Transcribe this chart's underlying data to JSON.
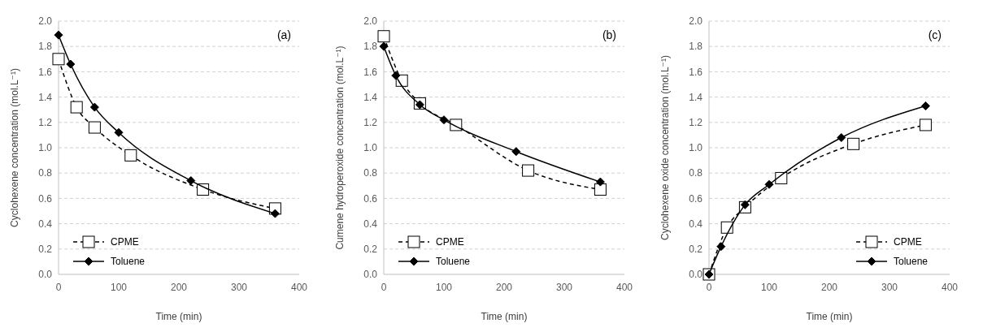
{
  "chart_data": [
    {
      "type": "line",
      "annotations": [
        "(a)"
      ],
      "xlabel": "Time (min)",
      "ylabel": "Cyclohexene concentration (mol.L⁻¹)",
      "xlim": [
        0,
        400
      ],
      "xticks": [
        0,
        100,
        200,
        300,
        400
      ],
      "ylim": [
        0,
        2
      ],
      "yticks": [
        {
          "value": 0,
          "label": "0.0"
        },
        {
          "value": 0.2,
          "label": "0.2"
        },
        {
          "value": 0.4,
          "label": "0.4"
        },
        {
          "value": 0.6,
          "label": "0.6"
        },
        {
          "value": 0.8,
          "label": "0.8"
        },
        {
          "value": 1,
          "label": "1.0"
        },
        {
          "value": 1.2,
          "label": "1.2"
        },
        {
          "value": 1.4,
          "label": "1.4"
        },
        {
          "value": 1.6,
          "label": "1.6"
        },
        {
          "value": 1.8,
          "label": "1.8"
        },
        {
          "value": 2,
          "label": "2.0"
        }
      ],
      "grid": "y",
      "legend": "bottom left",
      "series": [
        {
          "name": "CPME",
          "color": "#000000",
          "marker": "square",
          "line_style": "dashed",
          "x": [
            0,
            30,
            60,
            120,
            240,
            360
          ],
          "values": [
            1.7,
            1.32,
            1.16,
            0.94,
            0.67,
            0.52
          ]
        },
        {
          "name": "Toluene",
          "color": "#000000",
          "marker": "diamond",
          "line_style": "solid",
          "x": [
            0,
            20,
            60,
            100,
            220,
            360
          ],
          "values": [
            1.89,
            1.66,
            1.32,
            1.12,
            0.74,
            0.48
          ]
        }
      ]
    },
    {
      "type": "line",
      "annotations": [
        "(b)"
      ],
      "xlabel": "Time (min)",
      "ylabel": "Cumene hydroperoxide concentration (mol.L⁻¹)",
      "xlim": [
        0,
        400
      ],
      "xticks": [
        0,
        100,
        200,
        300,
        400
      ],
      "ylim": [
        0,
        2
      ],
      "yticks": [
        {
          "value": 0,
          "label": "0.0"
        },
        {
          "value": 0.2,
          "label": "0.2"
        },
        {
          "value": 0.4,
          "label": "0.4"
        },
        {
          "value": 0.6,
          "label": "0.6"
        },
        {
          "value": 0.8,
          "label": "0.8"
        },
        {
          "value": 1,
          "label": "1.0"
        },
        {
          "value": 1.2,
          "label": "1.2"
        },
        {
          "value": 1.4,
          "label": "1.4"
        },
        {
          "value": 1.6,
          "label": "1.6"
        },
        {
          "value": 1.8,
          "label": "1.8"
        },
        {
          "value": 2,
          "label": "2.0"
        }
      ],
      "grid": "y",
      "legend": "bottom left",
      "series": [
        {
          "name": "CPME",
          "color": "#000000",
          "marker": "square",
          "line_style": "dashed",
          "x": [
            0,
            30,
            60,
            120,
            240,
            360
          ],
          "values": [
            1.88,
            1.53,
            1.35,
            1.18,
            0.82,
            0.67
          ]
        },
        {
          "name": "Toluene",
          "color": "#000000",
          "marker": "diamond",
          "line_style": "solid",
          "x": [
            0,
            20,
            60,
            100,
            220,
            360
          ],
          "values": [
            1.8,
            1.57,
            1.34,
            1.22,
            0.97,
            0.73
          ]
        }
      ]
    },
    {
      "type": "line",
      "annotations": [
        "(c)"
      ],
      "xlabel": "Time (min)",
      "ylabel": "Cyclohexene oxide concentration (mol.L⁻¹)",
      "xlim": [
        0,
        400
      ],
      "xticks": [
        0,
        100,
        200,
        300,
        400
      ],
      "ylim": [
        0,
        2
      ],
      "yticks": [
        {
          "value": 0,
          "label": "0.0"
        },
        {
          "value": 0.2,
          "label": "0.2"
        },
        {
          "value": 0.4,
          "label": "0.4"
        },
        {
          "value": 0.6,
          "label": "0.6"
        },
        {
          "value": 0.8,
          "label": "0.8"
        },
        {
          "value": 1,
          "label": "1.0"
        },
        {
          "value": 1.2,
          "label": "1.2"
        },
        {
          "value": 1.4,
          "label": "1.4"
        },
        {
          "value": 1.6,
          "label": "1.6"
        },
        {
          "value": 1.8,
          "label": "1.8"
        },
        {
          "value": 2,
          "label": "2.0"
        }
      ],
      "grid": "y",
      "legend": "bottom right",
      "series": [
        {
          "name": "CPME",
          "color": "#000000",
          "marker": "square",
          "line_style": "dashed",
          "x": [
            0,
            30,
            60,
            120,
            240,
            360
          ],
          "values": [
            0.0,
            0.37,
            0.53,
            0.76,
            1.03,
            1.18
          ]
        },
        {
          "name": "Toluene",
          "color": "#000000",
          "marker": "diamond",
          "line_style": "solid",
          "x": [
            0,
            20,
            60,
            100,
            220,
            360
          ],
          "values": [
            0.0,
            0.22,
            0.55,
            0.71,
            1.08,
            1.33
          ]
        }
      ]
    }
  ]
}
